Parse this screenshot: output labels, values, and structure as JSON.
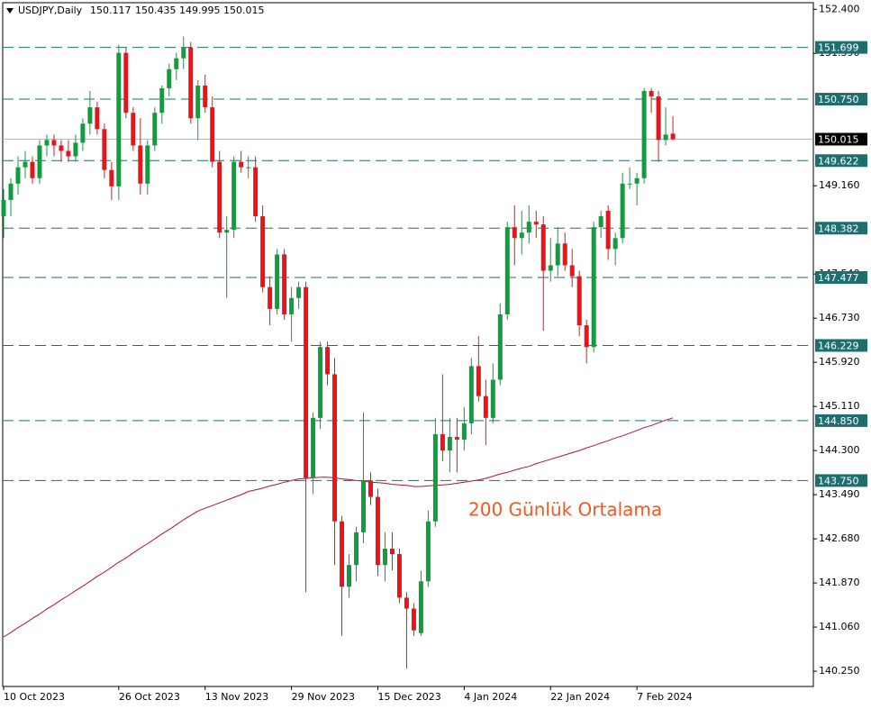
{
  "chart_data": {
    "type": "candlestick",
    "title": "USDJPY,Daily",
    "annotation": "200 Günlük Ortalama",
    "up_color": "#0f9d3e",
    "down_color": "#e8141c",
    "level_color": "#1e6e70",
    "ma_color": "#b5103c",
    "annotation_color": "#f05a22",
    "ylim": [
      139.97,
      152.52
    ],
    "yticks": [
      {
        "value": 152.4,
        "label": "152.400"
      },
      {
        "value": 151.59,
        "label": "151.590"
      },
      {
        "value": 149.16,
        "label": "149.160"
      },
      {
        "value": 147.54,
        "label": "147.540"
      },
      {
        "value": 146.73,
        "label": "146.730"
      },
      {
        "value": 145.92,
        "label": "145.920"
      },
      {
        "value": 145.11,
        "label": "145.110"
      },
      {
        "value": 144.3,
        "label": "144.300"
      },
      {
        "value": 143.49,
        "label": "143.490"
      },
      {
        "value": 142.68,
        "label": "142.680"
      },
      {
        "value": 141.87,
        "label": "141.870"
      },
      {
        "value": 141.06,
        "label": "141.060"
      },
      {
        "value": 140.25,
        "label": "140.250"
      }
    ],
    "levels": [
      151.699,
      {
        "value": 150.75,
        "label": "150.750"
      },
      149.622,
      148.382,
      147.477,
      146.229,
      {
        "value": 144.85,
        "label": "144.850"
      },
      {
        "value": 143.75,
        "label": "143.750"
      }
    ],
    "categories": [
      "10 Oct 2023",
      null,
      null,
      null,
      null,
      null,
      null,
      null,
      null,
      null,
      null,
      null,
      null,
      null,
      null,
      null,
      "26 Oct 2023",
      null,
      null,
      null,
      null,
      null,
      null,
      null,
      null,
      null,
      null,
      null,
      "13 Nov 2023",
      null,
      null,
      null,
      null,
      null,
      null,
      null,
      null,
      null,
      null,
      null,
      "29 Nov 2023",
      null,
      null,
      null,
      null,
      null,
      null,
      null,
      null,
      null,
      null,
      null,
      "15 Dec 2023",
      null,
      null,
      null,
      null,
      null,
      null,
      null,
      null,
      null,
      null,
      null,
      "4 Jan 2024",
      null,
      null,
      null,
      null,
      null,
      null,
      null,
      null,
      null,
      null,
      null,
      "22 Jan 2024",
      null,
      null,
      null,
      null,
      null,
      null,
      null,
      null,
      null,
      null,
      null,
      "7 Feb 2024",
      null,
      null,
      null,
      null,
      null
    ],
    "candles": [
      [
        148.6,
        149.1,
        148.2,
        148.9
      ],
      [
        148.9,
        149.3,
        148.6,
        149.2
      ],
      [
        149.2,
        149.7,
        149.0,
        149.5
      ],
      [
        149.5,
        149.8,
        149.3,
        149.6
      ],
      [
        149.6,
        149.7,
        149.2,
        149.3
      ],
      [
        149.3,
        150.0,
        149.2,
        149.9
      ],
      [
        149.9,
        150.1,
        149.7,
        150.0
      ],
      [
        150.0,
        150.1,
        149.7,
        149.9
      ],
      [
        149.9,
        150.0,
        149.6,
        149.8
      ],
      [
        149.8,
        150.0,
        149.6,
        149.7
      ],
      [
        149.7,
        150.1,
        149.6,
        149.95
      ],
      [
        149.95,
        150.4,
        149.8,
        150.3
      ],
      [
        150.3,
        150.9,
        150.1,
        150.6
      ],
      [
        150.6,
        150.7,
        150.1,
        150.2
      ],
      [
        150.2,
        150.3,
        149.3,
        149.45
      ],
      [
        149.45,
        149.6,
        148.9,
        149.15
      ],
      [
        149.15,
        151.75,
        148.9,
        151.6
      ],
      [
        151.6,
        151.7,
        150.4,
        150.5
      ],
      [
        150.5,
        150.6,
        149.8,
        149.9
      ],
      [
        149.9,
        150.4,
        149.0,
        149.2
      ],
      [
        149.2,
        150.0,
        149.0,
        149.9
      ],
      [
        149.9,
        150.6,
        149.8,
        150.5
      ],
      [
        150.5,
        151.0,
        150.3,
        150.95
      ],
      [
        150.95,
        151.4,
        150.8,
        151.3
      ],
      [
        151.3,
        151.6,
        151.1,
        151.5
      ],
      [
        151.5,
        151.9,
        151.3,
        151.7
      ],
      [
        151.7,
        151.8,
        150.3,
        150.4
      ],
      [
        150.4,
        151.1,
        150.0,
        151.0
      ],
      [
        151.0,
        151.2,
        150.5,
        150.6
      ],
      [
        150.6,
        150.8,
        149.5,
        149.6
      ],
      [
        149.6,
        149.8,
        148.2,
        148.3
      ],
      [
        148.3,
        148.6,
        147.1,
        148.35
      ],
      [
        148.35,
        149.7,
        148.2,
        149.6
      ],
      [
        149.6,
        149.8,
        149.4,
        149.5
      ],
      [
        149.5,
        149.7,
        149.3,
        149.5
      ],
      [
        149.5,
        149.7,
        148.5,
        148.6
      ],
      [
        148.6,
        148.8,
        147.2,
        147.3
      ],
      [
        147.3,
        147.5,
        146.6,
        146.9
      ],
      [
        146.9,
        148.0,
        146.8,
        147.9
      ],
      [
        147.9,
        148.0,
        146.7,
        146.8
      ],
      [
        146.8,
        147.3,
        146.3,
        147.1
      ],
      [
        147.1,
        147.4,
        146.9,
        147.3
      ],
      [
        147.3,
        147.4,
        141.7,
        143.8
      ],
      [
        143.8,
        145.0,
        143.5,
        144.9
      ],
      [
        144.9,
        146.3,
        144.7,
        146.2
      ],
      [
        146.2,
        146.3,
        145.5,
        145.7
      ],
      [
        145.7,
        146.0,
        142.2,
        143.0
      ],
      [
        143.0,
        143.1,
        140.9,
        141.8
      ],
      [
        141.8,
        142.4,
        141.6,
        142.2
      ],
      [
        142.2,
        142.9,
        141.9,
        142.8
      ],
      [
        142.8,
        145.0,
        142.6,
        143.75
      ],
      [
        143.75,
        143.9,
        143.3,
        143.45
      ],
      [
        143.45,
        143.6,
        142.0,
        142.2
      ],
      [
        142.2,
        142.8,
        141.9,
        142.5
      ],
      [
        142.5,
        142.8,
        142.1,
        142.4
      ],
      [
        142.4,
        142.5,
        141.5,
        141.6
      ],
      [
        141.6,
        141.7,
        140.3,
        141.4
      ],
      [
        141.4,
        141.5,
        140.9,
        141.0
      ],
      [
        140.95,
        142.1,
        140.9,
        141.9
      ],
      [
        141.9,
        143.2,
        141.8,
        143.0
      ],
      [
        143.0,
        144.9,
        142.9,
        144.6
      ],
      [
        144.6,
        145.7,
        144.1,
        144.3
      ],
      [
        144.3,
        144.9,
        143.9,
        144.55
      ],
      [
        144.55,
        144.9,
        143.9,
        144.5
      ],
      [
        144.5,
        145.1,
        144.3,
        144.8
      ],
      [
        144.8,
        146.0,
        144.6,
        145.85
      ],
      [
        145.85,
        146.4,
        145.2,
        145.3
      ],
      [
        145.3,
        145.6,
        144.4,
        144.9
      ],
      [
        144.9,
        145.9,
        144.8,
        145.6
      ],
      [
        145.6,
        147.0,
        145.5,
        146.8
      ],
      [
        146.8,
        148.5,
        146.7,
        148.4
      ],
      [
        148.4,
        148.8,
        147.7,
        148.2
      ],
      [
        148.2,
        148.7,
        147.9,
        148.3
      ],
      [
        148.3,
        148.8,
        148.1,
        148.5
      ],
      [
        148.5,
        148.7,
        148.2,
        148.45
      ],
      [
        148.45,
        148.6,
        146.5,
        147.6
      ],
      [
        147.6,
        148.2,
        147.4,
        147.7
      ],
      [
        147.7,
        148.4,
        147.5,
        148.1
      ],
      [
        148.1,
        148.3,
        147.6,
        147.7
      ],
      [
        147.7,
        148.0,
        147.3,
        147.5
      ],
      [
        147.5,
        147.6,
        146.4,
        146.6
      ],
      [
        146.6,
        146.7,
        145.9,
        146.2
      ],
      [
        146.2,
        148.5,
        146.1,
        148.4
      ],
      [
        148.4,
        148.7,
        148.2,
        148.6
      ],
      [
        148.7,
        148.8,
        147.8,
        148.0
      ],
      [
        148.0,
        148.3,
        147.7,
        148.2
      ],
      [
        148.2,
        149.4,
        148.1,
        149.2
      ],
      [
        149.2,
        149.5,
        149.1,
        149.2
      ],
      [
        149.2,
        149.4,
        148.8,
        149.3
      ],
      [
        149.3,
        150.95,
        149.2,
        150.9
      ],
      [
        150.9,
        150.95,
        150.5,
        150.8
      ],
      [
        150.8,
        150.9,
        149.6,
        150.0
      ],
      [
        150.0,
        150.6,
        149.9,
        150.1
      ],
      [
        150.117,
        150.435,
        149.995,
        150.015
      ]
    ],
    "ma_200": [
      140.88,
      140.96,
      141.05,
      141.13,
      141.22,
      141.3,
      141.39,
      141.47,
      141.56,
      141.64,
      141.73,
      141.81,
      141.9,
      141.99,
      142.07,
      142.16,
      142.25,
      142.33,
      142.42,
      142.51,
      142.59,
      142.68,
      142.77,
      142.85,
      142.94,
      143.03,
      143.11,
      143.19,
      143.24,
      143.29,
      143.34,
      143.39,
      143.44,
      143.49,
      143.55,
      143.58,
      143.61,
      143.65,
      143.68,
      143.72,
      143.75,
      143.78,
      143.79,
      143.8,
      143.81,
      143.81,
      143.8,
      143.78,
      143.77,
      143.75,
      143.74,
      143.72,
      143.71,
      143.7,
      143.68,
      143.67,
      143.66,
      143.64,
      143.64,
      143.65,
      143.66,
      143.67,
      143.68,
      143.7,
      143.72,
      143.74,
      143.76,
      143.79,
      143.83,
      143.87,
      143.9,
      143.94,
      143.98,
      144.01,
      144.06,
      144.1,
      144.14,
      144.18,
      144.22,
      144.26,
      144.3,
      144.35,
      144.39,
      144.44,
      144.48,
      144.53,
      144.57,
      144.62,
      144.67,
      144.72,
      144.76,
      144.81,
      144.86,
      144.9
    ]
  }
}
